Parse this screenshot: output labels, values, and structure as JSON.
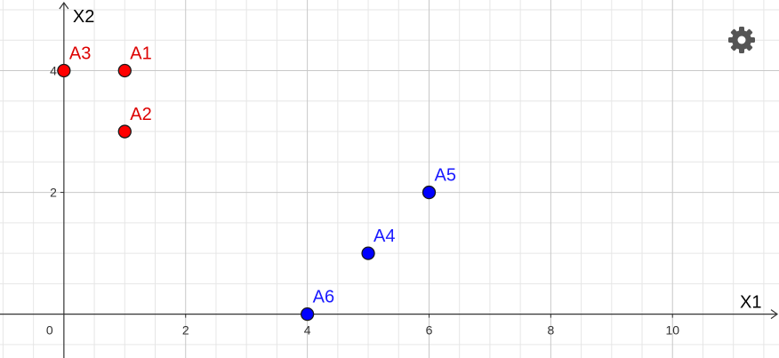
{
  "chart_data": {
    "type": "scatter",
    "xlabel": "X1",
    "ylabel": "X2",
    "x_ticks": [
      {
        "value": 0,
        "label": "0"
      },
      {
        "value": 2,
        "label": "2"
      },
      {
        "value": 4,
        "label": "4"
      },
      {
        "value": 6,
        "label": "6"
      },
      {
        "value": 8,
        "label": "8"
      },
      {
        "value": 10,
        "label": "10"
      }
    ],
    "y_ticks": [
      {
        "value": 2,
        "label": "2"
      },
      {
        "value": 4,
        "label": "4"
      }
    ],
    "xlim": [
      -1.05,
      11.75
    ],
    "ylim": [
      -0.72,
      5.16
    ],
    "grid": true,
    "points": [
      {
        "label": "A1",
        "x": 1,
        "y": 4,
        "color": "#ff0000",
        "label_color": "#dd0000"
      },
      {
        "label": "A2",
        "x": 1,
        "y": 3,
        "color": "#ff0000",
        "label_color": "#dd0000"
      },
      {
        "label": "A3",
        "x": 0,
        "y": 4,
        "color": "#ff0000",
        "label_color": "#dd0000"
      },
      {
        "label": "A4",
        "x": 5,
        "y": 1,
        "color": "#0000ff",
        "label_color": "#1a1aff"
      },
      {
        "label": "A5",
        "x": 6,
        "y": 2,
        "color": "#0000ff",
        "label_color": "#1a1aff"
      },
      {
        "label": "A6",
        "x": 4,
        "y": 0,
        "color": "#0000ff",
        "label_color": "#1a1aff"
      }
    ]
  },
  "toolbar": {
    "settings_icon": "gear-icon"
  }
}
